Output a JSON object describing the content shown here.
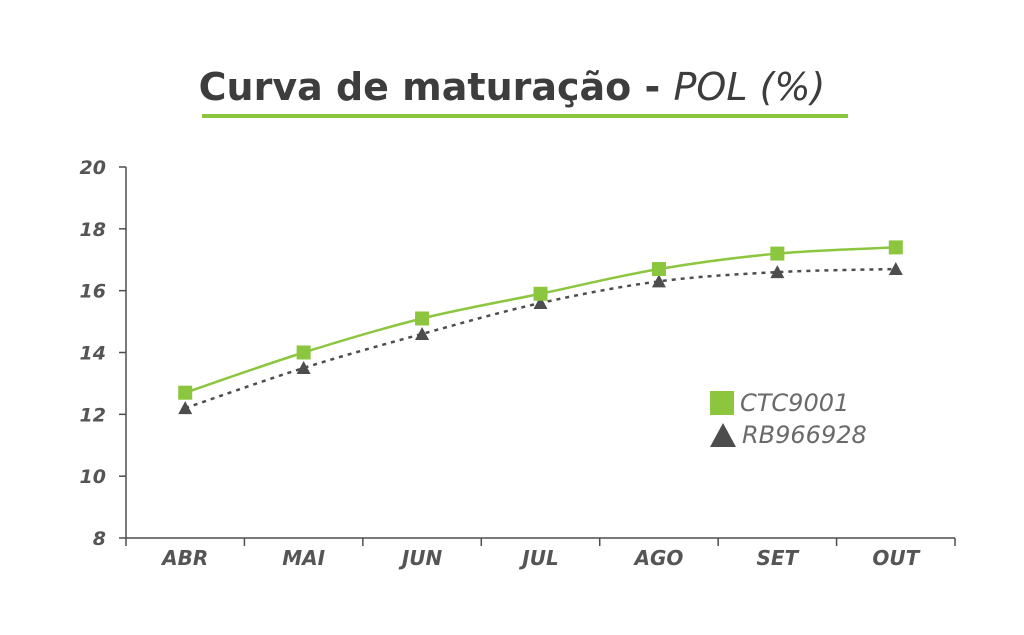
{
  "chart_data": {
    "type": "line",
    "title": "Curva de maturação - ",
    "title_italic": "POL (%)",
    "categories": [
      "ABR",
      "MAI",
      "JUN",
      "JUL",
      "AGO",
      "SET",
      "OUT"
    ],
    "ylim": [
      8,
      20
    ],
    "yticks": [
      "8",
      "10",
      "12",
      "14",
      "16",
      "18",
      "20"
    ],
    "series": [
      {
        "name": "CTC9001",
        "values": [
          12.7,
          14.0,
          15.1,
          15.9,
          16.7,
          17.2,
          17.4
        ],
        "color": "#8cc63f",
        "marker": "square",
        "line": "solid"
      },
      {
        "name": "RB966928",
        "values": [
          12.2,
          13.5,
          14.6,
          15.6,
          16.3,
          16.6,
          16.7
        ],
        "color": "#4d4d4d",
        "marker": "triangle",
        "line": "dotted"
      }
    ],
    "legend": "right",
    "grid": false
  }
}
